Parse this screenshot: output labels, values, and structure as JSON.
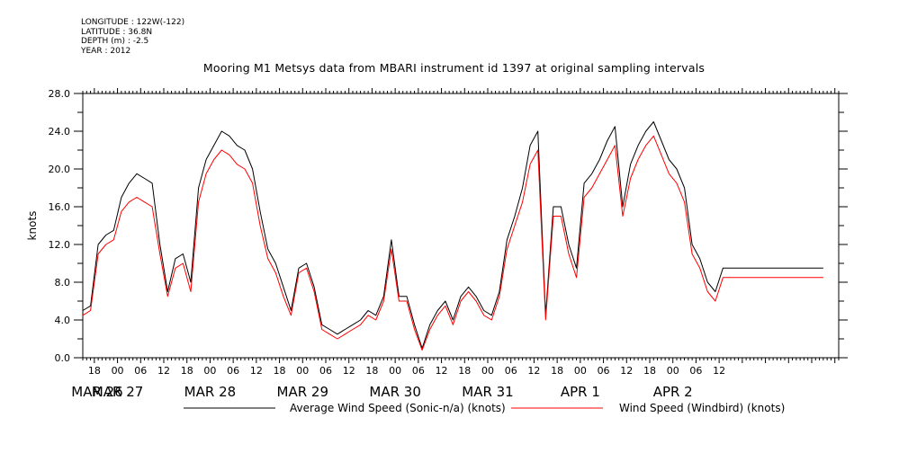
{
  "header": {
    "longitude": "LONGITUDE : 122W(-122)",
    "latitude": "LATITUDE : 36.8N",
    "depth": "DEPTH (m) : -2.5",
    "year": "YEAR : 2012"
  },
  "chart_data": {
    "type": "line",
    "title": "Mooring M1 Metsys data from MBARI instrument id 1397 at original sampling intervals",
    "ylabel": "knots",
    "xlabel": "",
    "ylim": [
      0,
      28
    ],
    "yticks": [
      "0.0",
      "4.0",
      "8.0",
      "12.0",
      "16.0",
      "20.0",
      "24.0",
      "28.0"
    ],
    "x_hour_ticks": [
      "18",
      "00",
      "06",
      "12",
      "18",
      "00",
      "06",
      "12",
      "18",
      "00",
      "06",
      "12",
      "18",
      "00",
      "06",
      "12",
      "18",
      "00",
      "06",
      "12",
      "18",
      "00",
      "06",
      "12",
      "18",
      "00",
      "06",
      "12"
    ],
    "x_day_labels": [
      "MAR 26",
      "MAR 27",
      "MAR 28",
      "MAR 29",
      "MAR 30",
      "MAR 31",
      "APR  1",
      "APR  2"
    ],
    "x_unit": "hours since 2012-03-26 15:00",
    "series": [
      {
        "name": "Average Wind Speed (Sonic-n/a) (knots)",
        "color": "#000000",
        "x": [
          0,
          2,
          4,
          6,
          8,
          10,
          12,
          14,
          16,
          18,
          20,
          22,
          24,
          26,
          28,
          30,
          32,
          34,
          36,
          38,
          40,
          42,
          44,
          46,
          48,
          50,
          52,
          54,
          56,
          58,
          60,
          62,
          64,
          66,
          68,
          70,
          72,
          74,
          76,
          78,
          80,
          82,
          84,
          86,
          88,
          90,
          92,
          94,
          96,
          98,
          100,
          102,
          104,
          106,
          108,
          110,
          112,
          114,
          116,
          118,
          120,
          122,
          124,
          126,
          128,
          130,
          132,
          134,
          136,
          138,
          140,
          142,
          144,
          146,
          148,
          150,
          152,
          154,
          156,
          158,
          160,
          162,
          164,
          166,
          168,
          170,
          172,
          174,
          176,
          178,
          180,
          182,
          184,
          186,
          188,
          190,
          192
        ],
        "values": [
          5.0,
          5.5,
          12.0,
          13.0,
          13.5,
          17.0,
          18.5,
          19.5,
          19.0,
          18.5,
          12.0,
          7.0,
          10.5,
          11.0,
          8.0,
          18.0,
          21.0,
          22.5,
          24.0,
          23.5,
          22.5,
          22.0,
          20.0,
          15.5,
          11.5,
          10.0,
          7.5,
          5.0,
          9.5,
          10.0,
          7.5,
          3.5,
          3.0,
          2.5,
          3.0,
          3.5,
          4.0,
          5.0,
          4.5,
          6.5,
          12.5,
          6.5,
          6.5,
          3.5,
          1.0,
          3.5,
          5.0,
          6.0,
          4.0,
          6.5,
          7.5,
          6.5,
          5.0,
          4.5,
          7.0,
          12.5,
          15.0,
          18.0,
          22.5,
          24.0,
          4.5,
          16.0,
          16.0,
          12.0,
          9.5,
          18.5,
          19.5,
          21.0,
          23.0,
          24.5,
          16.0,
          20.5,
          22.5,
          24.0,
          25.0,
          23.0,
          21.0,
          20.0,
          18.0,
          12.0,
          10.5,
          8.0,
          7.0,
          9.5,
          9.5,
          9.5,
          9.5,
          9.5,
          9.5,
          9.5,
          9.5,
          9.5,
          9.5,
          9.5,
          9.5,
          9.5,
          9.5
        ]
      },
      {
        "name": "Wind Speed (Windbird) (knots)",
        "color": "#ff0000",
        "x": [
          0,
          2,
          4,
          6,
          8,
          10,
          12,
          14,
          16,
          18,
          20,
          22,
          24,
          26,
          28,
          30,
          32,
          34,
          36,
          38,
          40,
          42,
          44,
          46,
          48,
          50,
          52,
          54,
          56,
          58,
          60,
          62,
          64,
          66,
          68,
          70,
          72,
          74,
          76,
          78,
          80,
          82,
          84,
          86,
          88,
          90,
          92,
          94,
          96,
          98,
          100,
          102,
          104,
          106,
          108,
          110,
          112,
          114,
          116,
          118,
          120,
          122,
          124,
          126,
          128,
          130,
          132,
          134,
          136,
          138,
          140,
          142,
          144,
          146,
          148,
          150,
          152,
          154,
          156,
          158,
          160,
          162,
          164,
          166,
          168,
          170,
          172,
          174,
          176,
          178,
          180,
          182,
          184,
          186,
          188,
          190,
          192
        ],
        "values": [
          4.5,
          5.0,
          11.0,
          12.0,
          12.5,
          15.5,
          16.5,
          17.0,
          16.5,
          16.0,
          11.0,
          6.5,
          9.5,
          10.0,
          7.0,
          16.5,
          19.5,
          21.0,
          22.0,
          21.5,
          20.5,
          20.0,
          18.5,
          14.0,
          10.5,
          9.0,
          6.5,
          4.5,
          9.0,
          9.5,
          7.0,
          3.0,
          2.5,
          2.0,
          2.5,
          3.0,
          3.5,
          4.5,
          4.0,
          6.0,
          11.5,
          6.0,
          6.0,
          3.0,
          0.8,
          3.0,
          4.5,
          5.5,
          3.5,
          6.0,
          7.0,
          6.0,
          4.5,
          4.0,
          6.5,
          11.5,
          14.0,
          16.5,
          20.5,
          22.0,
          4.0,
          15.0,
          15.0,
          11.0,
          8.5,
          17.0,
          18.0,
          19.5,
          21.0,
          22.5,
          15.0,
          19.0,
          21.0,
          22.5,
          23.5,
          21.5,
          19.5,
          18.5,
          16.5,
          11.0,
          9.5,
          7.0,
          6.0,
          8.5,
          8.5,
          8.5,
          8.5,
          8.5,
          8.5,
          8.5,
          8.5,
          8.5,
          8.5,
          8.5,
          8.5,
          8.5,
          8.5
        ]
      }
    ]
  }
}
